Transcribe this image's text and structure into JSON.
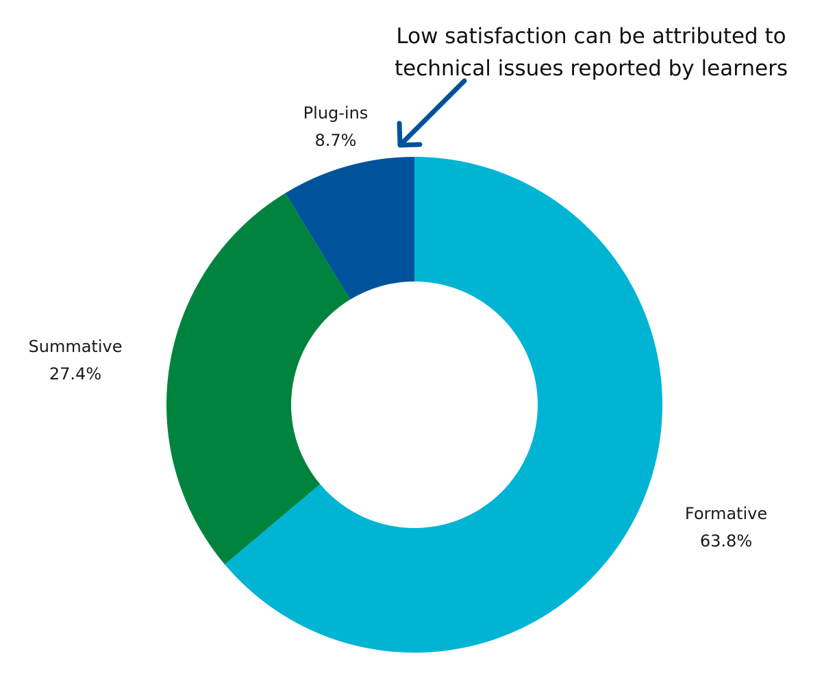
{
  "chart_data": {
    "type": "pie",
    "donut": true,
    "slices": [
      {
        "label": "Formative",
        "value": 63.8,
        "value_label": "63.8%",
        "color": "#00b4d4"
      },
      {
        "label": "Summative",
        "value": 27.4,
        "value_label": "27.4%",
        "color": "#00843d"
      },
      {
        "label": "Plug-ins",
        "value": 8.7,
        "value_label": "8.7%",
        "color": "#00529b"
      }
    ],
    "annotation": {
      "lines": [
        "Low satisfaction can be attributed to",
        "technical issues reported by learners"
      ],
      "arrow_color": "#00529b",
      "points_to": "Plug-ins"
    },
    "legend": "none"
  }
}
